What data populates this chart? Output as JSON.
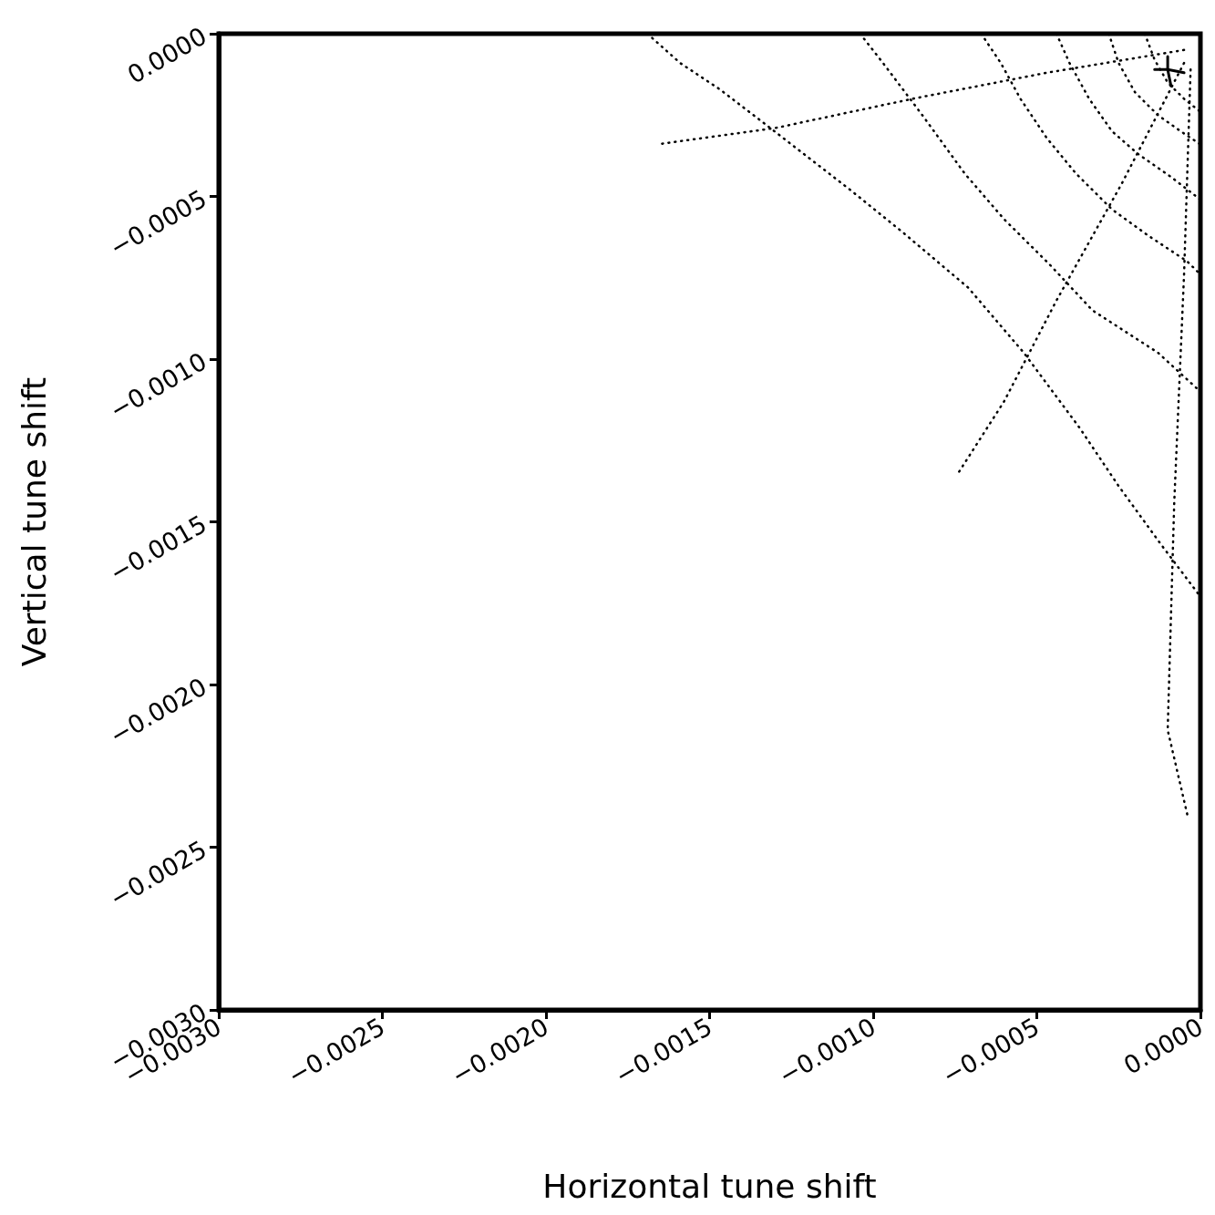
{
  "chart_data": {
    "type": "line",
    "xlabel": "Horizontal tune shift",
    "ylabel": "Vertical tune shift",
    "xlim": [
      -0.003,
      0
    ],
    "ylim": [
      -0.003,
      0
    ],
    "xticks": [
      {
        "value": -0.003,
        "label": "−0.0030"
      },
      {
        "value": -0.0025,
        "label": "−0.0025"
      },
      {
        "value": -0.002,
        "label": "−0.0020"
      },
      {
        "value": -0.0015,
        "label": "−0.0015"
      },
      {
        "value": -0.001,
        "label": "−0.0010"
      },
      {
        "value": -0.0005,
        "label": "−0.0005"
      },
      {
        "value": 0,
        "label": "0.0000"
      }
    ],
    "yticks": [
      {
        "value": -0.003,
        "label": "−0.0030"
      },
      {
        "value": -0.0025,
        "label": "−0.0025"
      },
      {
        "value": -0.002,
        "label": "−0.0020"
      },
      {
        "value": -0.0015,
        "label": "−0.0015"
      },
      {
        "value": -0.001,
        "label": "−0.0010"
      },
      {
        "value": -0.0005,
        "label": "−0.0005"
      },
      {
        "value": 0,
        "label": "0.0000"
      }
    ],
    "grid": false,
    "marker": "none",
    "line_style": "dotted",
    "series": [
      {
        "color": "#000000",
        "x": [
          -0.00169,
          -0.00159,
          -0.00147,
          -0.00134,
          -0.00107,
          -0.00091,
          -0.00071,
          -0.00054,
          -0.00037,
          -0.00025,
          -0.00012,
          0
        ],
        "values": [
          0,
          -9e-05,
          -0.00017,
          -0.00027,
          -0.00048,
          -0.00061,
          -0.00078,
          -0.00098,
          -0.00121,
          -0.00139,
          -0.00157,
          -0.00173
        ]
      },
      {
        "color": "#000000",
        "x": [
          -0.00104,
          -0.00097,
          -0.00085,
          -0.00072,
          -0.0006,
          -0.00046,
          -0.00033,
          -0.00013,
          0
        ],
        "values": [
          0,
          -9e-05,
          -0.00025,
          -0.00043,
          -0.00057,
          -0.00071,
          -0.00085,
          -0.00098,
          -0.0011
        ]
      },
      {
        "color": "#000000",
        "x": [
          -0.00067,
          -0.00061,
          -0.00055,
          -0.00047,
          -0.00038,
          -0.00027,
          -0.00016,
          -4e-05,
          0
        ],
        "values": [
          0,
          -9e-05,
          -0.0002,
          -0.00032,
          -0.00043,
          -0.00054,
          -0.00062,
          -0.0007,
          -0.00074
        ]
      },
      {
        "color": "#000000",
        "x": [
          -0.00044,
          -0.0004,
          -0.00034,
          -0.00027,
          -0.00019,
          -9e-05,
          0
        ],
        "values": [
          0,
          -9e-05,
          -0.0002,
          -0.0003,
          -0.00037,
          -0.00044,
          -0.00051
        ]
      },
      {
        "color": "#000000",
        "x": [
          -0.00028,
          -0.00025,
          -0.0002,
          -0.00013,
          -6e-05,
          0
        ],
        "values": [
          0,
          -9e-05,
          -0.00018,
          -0.00025,
          -0.0003,
          -0.00034
        ]
      },
      {
        "color": "#000000",
        "x": [
          -0.00017,
          -0.00014,
          -0.0001,
          -5e-05,
          0
        ],
        "values": [
          0,
          -8e-05,
          -0.00015,
          -0.0002,
          -0.00024
        ]
      },
      {
        "color": "#000000",
        "x": [
          -5e-05,
          -0.00047,
          -0.00088,
          -0.0013,
          -0.00166
        ],
        "values": [
          -5e-05,
          -0.00012,
          -0.0002,
          -0.00029,
          -0.00034
        ]
      },
      {
        "color": "#000000",
        "x": [
          -5e-05,
          -0.00024,
          -0.00044,
          -0.0006,
          -0.00074
        ],
        "values": [
          -9e-05,
          -0.00046,
          -0.00082,
          -0.00113,
          -0.00135
        ]
      },
      {
        "color": "#000000",
        "x": [
          -3e-05,
          -5e-05,
          -8e-05,
          -0.0001,
          -4e-05
        ],
        "values": [
          -0.00011,
          -0.00074,
          -0.00144,
          -0.00214,
          -0.0024
        ]
      },
      {
        "color": "#000000",
        "line_style": "solid",
        "x": [
          -0.00014,
          -0.0001,
          -5e-05
        ],
        "values": [
          -0.00011,
          -0.00011,
          -0.00012
        ]
      },
      {
        "color": "#000000",
        "line_style": "solid",
        "x": [
          -0.0001,
          -0.0001,
          -9e-05
        ],
        "values": [
          -7e-05,
          -0.00011,
          -0.00016
        ]
      }
    ]
  }
}
